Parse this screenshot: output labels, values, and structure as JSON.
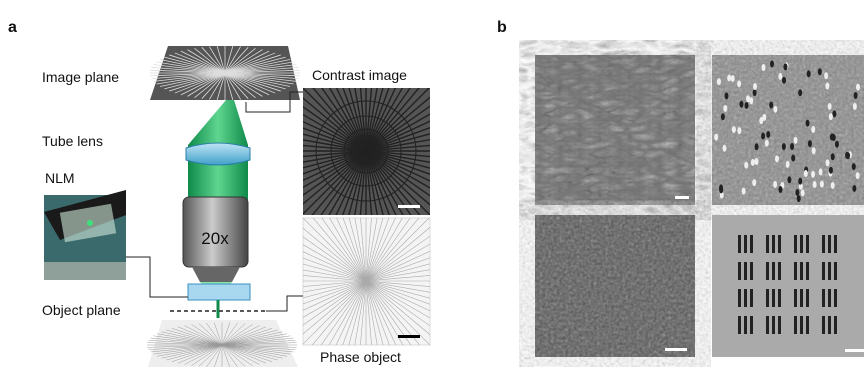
{
  "panel_a": {
    "label": "a",
    "image_plane": "Image plane",
    "contrast_image": "Contrast image",
    "tube_lens": "Tube lens",
    "nlm": "NLM",
    "objective": "20x",
    "object_plane": "Object plane",
    "phase_object": "Phase object"
  },
  "panel_b": {
    "label": "b"
  }
}
